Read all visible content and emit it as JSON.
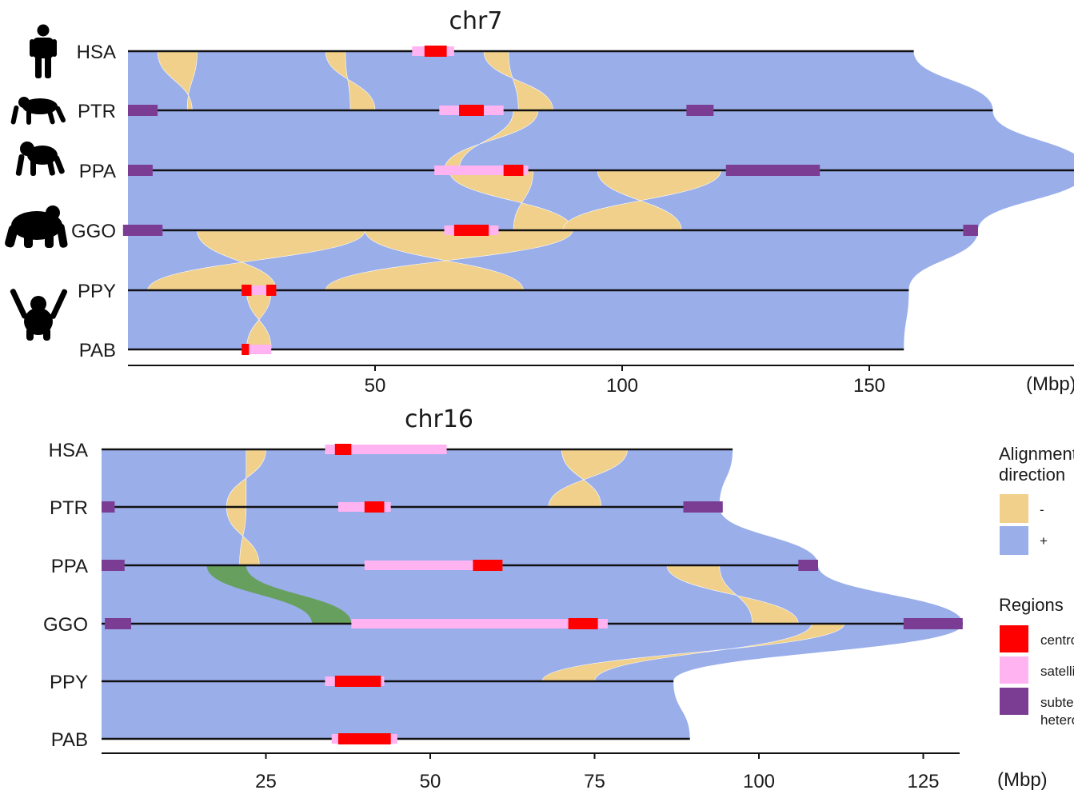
{
  "chart_data": [
    {
      "type": "synteny",
      "title": "chr7",
      "unit_label": "(Mbp)",
      "x_ticks": [
        50,
        100,
        150
      ],
      "xlim": [
        0,
        194
      ],
      "species": [
        {
          "code": "HSA",
          "length": 159,
          "regions": [
            {
              "type": "satellite",
              "start": 57.5,
              "end": 66
            },
            {
              "type": "centromere",
              "start": 60,
              "end": 64.5
            }
          ]
        },
        {
          "code": "PTR",
          "length": 175,
          "regions": [
            {
              "type": "subterminal",
              "start": 0,
              "end": 6
            },
            {
              "type": "satellite",
              "start": 63,
              "end": 76
            },
            {
              "type": "centromere",
              "start": 67,
              "end": 72
            },
            {
              "type": "subterminal",
              "start": 113,
              "end": 118.5
            }
          ]
        },
        {
          "code": "PPA",
          "length": 194,
          "regions": [
            {
              "type": "subterminal",
              "start": 0,
              "end": 5
            },
            {
              "type": "satellite",
              "start": 62,
              "end": 81
            },
            {
              "type": "centromere",
              "start": 76,
              "end": 80
            },
            {
              "type": "subterminal",
              "start": 121,
              "end": 140
            }
          ]
        },
        {
          "code": "GGO",
          "length": 172,
          "regions": [
            {
              "type": "subterminal",
              "start": -1,
              "end": 7
            },
            {
              "type": "satellite",
              "start": 64,
              "end": 75
            },
            {
              "type": "centromere",
              "start": 66,
              "end": 73
            },
            {
              "type": "subterminal",
              "start": 169,
              "end": 172
            }
          ]
        },
        {
          "code": "PPY",
          "length": 158,
          "regions": [
            {
              "type": "satellite",
              "start": 23,
              "end": 30
            },
            {
              "type": "centromere",
              "start": 23,
              "end": 25
            },
            {
              "type": "centromere",
              "start": 28,
              "end": 30
            }
          ]
        },
        {
          "code": "PAB",
          "length": 157,
          "regions": [
            {
              "type": "satellite",
              "start": 23,
              "end": 29
            },
            {
              "type": "centromere",
              "start": 23,
              "end": 24.5
            }
          ]
        }
      ],
      "inversions": [
        {
          "pair": [
            0,
            1
          ],
          "top": [
            6,
            14
          ],
          "bottom": [
            12,
            13
          ]
        },
        {
          "pair": [
            0,
            1
          ],
          "top": [
            40,
            44
          ],
          "bottom": [
            45,
            50
          ]
        },
        {
          "pair": [
            0,
            1
          ],
          "top": [
            72,
            77
          ],
          "bottom": [
            79,
            86
          ]
        },
        {
          "pair": [
            1,
            2
          ],
          "top": [
            78,
            83
          ],
          "bottom": [
            64,
            67
          ]
        },
        {
          "pair": [
            2,
            3
          ],
          "top": [
            65,
            82
          ],
          "bottom": [
            78,
            90
          ]
        },
        {
          "pair": [
            2,
            3
          ],
          "top": [
            95,
            120
          ],
          "bottom": [
            88,
            112
          ]
        },
        {
          "pair": [
            3,
            4
          ],
          "top": [
            14,
            48
          ],
          "bottom": [
            4,
            30
          ]
        },
        {
          "pair": [
            3,
            4
          ],
          "top": [
            48,
            90
          ],
          "bottom": [
            40,
            80
          ]
        },
        {
          "pair": [
            4,
            5
          ],
          "top": [
            24,
            29
          ],
          "bottom": [
            24,
            29
          ]
        }
      ]
    },
    {
      "type": "synteny",
      "title": "chr16",
      "unit_label": "(Mbp)",
      "x_ticks": [
        25,
        50,
        75,
        100,
        125
      ],
      "xlim": [
        0,
        131
      ],
      "species": [
        {
          "code": "HSA",
          "length": 96,
          "regions": [
            {
              "type": "satellite",
              "start": 34,
              "end": 52.5
            },
            {
              "type": "centromere",
              "start": 35.5,
              "end": 38
            }
          ]
        },
        {
          "code": "PTR",
          "length": 94,
          "regions": [
            {
              "type": "subterminal",
              "start": 0,
              "end": 2
            },
            {
              "type": "satellite",
              "start": 36,
              "end": 44
            },
            {
              "type": "centromere",
              "start": 40,
              "end": 43
            },
            {
              "type": "subterminal",
              "start": 88.5,
              "end": 94.5
            }
          ]
        },
        {
          "code": "PPA",
          "length": 109,
          "regions": [
            {
              "type": "subterminal",
              "start": 0,
              "end": 3.5
            },
            {
              "type": "satellite",
              "start": 40,
              "end": 61
            },
            {
              "type": "centromere",
              "start": 56.5,
              "end": 61
            },
            {
              "type": "subterminal",
              "start": 106,
              "end": 109
            }
          ]
        },
        {
          "code": "GGO",
          "length": 131,
          "regions": [
            {
              "type": "subterminal",
              "start": 0.5,
              "end": 4.5
            },
            {
              "type": "satellite",
              "start": 38,
              "end": 77
            },
            {
              "type": "centromere",
              "start": 71,
              "end": 75.5
            },
            {
              "type": "subterminal",
              "start": 122,
              "end": 131
            }
          ]
        },
        {
          "code": "PPY",
          "length": 87,
          "regions": [
            {
              "type": "satellite",
              "start": 34,
              "end": 43
            },
            {
              "type": "centromere",
              "start": 35.5,
              "end": 42.5
            }
          ]
        },
        {
          "code": "PAB",
          "length": 89.5,
          "regions": [
            {
              "type": "satellite",
              "start": 35,
              "end": 45
            },
            {
              "type": "centromere",
              "start": 36,
              "end": 44
            }
          ]
        }
      ],
      "inversions": [
        {
          "pair": [
            0,
            1
          ],
          "top": [
            70,
            80
          ],
          "bottom": [
            68,
            76
          ]
        },
        {
          "pair": [
            0,
            1
          ],
          "top": [
            22,
            25
          ],
          "bottom": [
            19,
            22
          ]
        },
        {
          "pair": [
            1,
            2
          ],
          "top": [
            19,
            22
          ],
          "bottom": [
            21,
            24
          ]
        },
        {
          "pair": [
            2,
            3
          ],
          "top": [
            86,
            94
          ],
          "bottom": [
            99,
            106
          ]
        },
        {
          "pair": [
            3,
            4
          ],
          "top": [
            108,
            113
          ],
          "bottom": [
            67,
            75
          ]
        }
      ],
      "other_alignments": [
        {
          "pair": [
            2,
            3
          ],
          "top": [
            16,
            22
          ],
          "bottom": [
            32,
            38
          ]
        }
      ]
    }
  ],
  "legend": {
    "alignment_title_line1": "Alignment",
    "alignment_title_line2": "direction",
    "minus_label": "-",
    "plus_label": "+",
    "regions_title": "Regions",
    "centromere_label": "centromere",
    "satellite_label": "satellite",
    "subterminal_line1": "subterminal",
    "subterminal_line2": "heterochromatin"
  },
  "colors": {
    "plus": "#9aaeea",
    "minus": "#f0d08a",
    "other": "#5e9e45",
    "centromere": "#ff0000",
    "satellite": "#ffb3f0",
    "subterminal": "#7b3d93"
  },
  "icons": [
    "human-icon",
    "chimpanzee-icon",
    "bonobo-icon",
    "gorilla-icon",
    "orangutan-icon"
  ]
}
